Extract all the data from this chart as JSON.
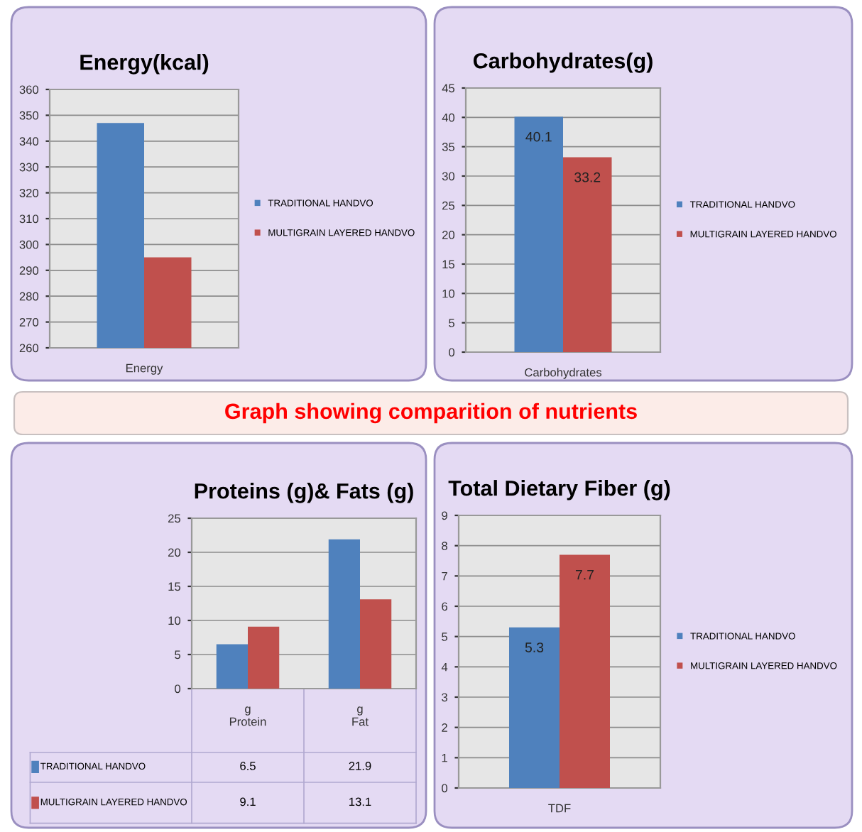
{
  "chart_data": [
    {
      "type": "bar",
      "title": "Energy(kcal)",
      "categories": [
        "Energy"
      ],
      "ylim": [
        260,
        360
      ],
      "yticks": [
        260,
        270,
        280,
        290,
        300,
        310,
        320,
        330,
        340,
        350,
        360
      ],
      "grid": "y",
      "legend": "right",
      "annotations": [
        "Graph showing comparition of nutrients"
      ],
      "series": [
        {
          "name": "TRADITIONAL HANDVO",
          "color": "#4f81bd",
          "values": [
            347
          ]
        },
        {
          "name": "MULTIGRAIN LAYERED HANDVO",
          "color": "#c0504d",
          "values": [
            295
          ]
        }
      ]
    },
    {
      "type": "bar",
      "title": "Carbohydrates(g)",
      "categories": [
        "Carbohydrates"
      ],
      "ylim": [
        0,
        45
      ],
      "yticks": [
        0,
        5,
        10,
        15,
        20,
        25,
        30,
        35,
        40,
        45
      ],
      "grid": "y",
      "legend": "right",
      "data_labels": true,
      "series": [
        {
          "name": "TRADITIONAL HANDVO",
          "color": "#4f81bd",
          "values": [
            40.1
          ]
        },
        {
          "name": "MULTIGRAIN LAYERED HANDVO",
          "color": "#c0504d",
          "values": [
            33.2
          ]
        }
      ]
    },
    {
      "type": "bar",
      "title": "Proteins (g)& Fats (g)",
      "categories": [
        "g\nProtein",
        "g\nFat"
      ],
      "ylim": [
        0,
        25
      ],
      "yticks": [
        0,
        5,
        10,
        15,
        20,
        25
      ],
      "grid": "y",
      "legend": "bottom left",
      "data_labels": true,
      "series": [
        {
          "name": "TRADITIONAL HANDVO",
          "color": "#4f81bd",
          "values": [
            6.5,
            21.9
          ]
        },
        {
          "name": "MULTIGRAIN LAYERED HANDVO",
          "color": "#c0504d",
          "values": [
            9.1,
            13.1
          ]
        }
      ]
    },
    {
      "type": "bar",
      "title": "Total Dietary Fiber (g)",
      "categories": [
        "TDF"
      ],
      "ylim": [
        0,
        9
      ],
      "yticks": [
        0,
        1,
        2,
        3,
        4,
        5,
        6,
        7,
        8,
        9
      ],
      "grid": "y",
      "legend": "right",
      "data_labels": true,
      "series": [
        {
          "name": "TRADITIONAL HANDVO",
          "color": "#4f81bd",
          "values": [
            5.3
          ]
        },
        {
          "name": "MULTIGRAIN LAYERED HANDVO",
          "color": "#c0504d",
          "values": [
            7.7
          ]
        }
      ]
    }
  ]
}
